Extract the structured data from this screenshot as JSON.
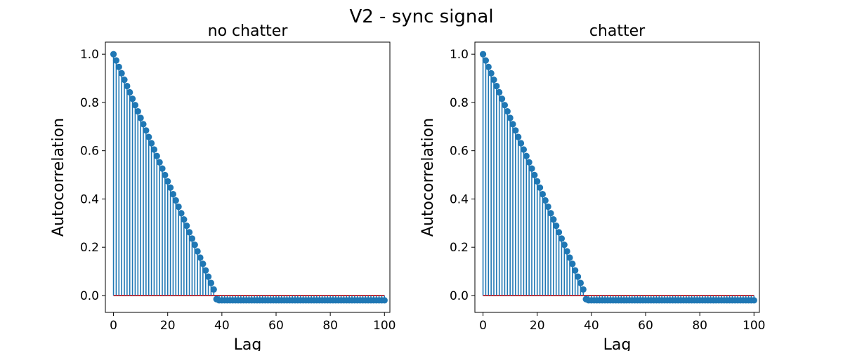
{
  "figure": {
    "title": "V2 - sync signal"
  },
  "colors": {
    "stem": "#1f77b4",
    "baseline": "#d62728",
    "axes": "#000000",
    "background": "#ffffff"
  },
  "chart_data": [
    {
      "type": "stem",
      "title": "no chatter",
      "xlabel": "Lag",
      "ylabel": "Autocorrelation",
      "xlim": [
        -3,
        102
      ],
      "ylim": [
        -0.07,
        1.05
      ],
      "xticks": [
        0,
        20,
        40,
        60,
        80,
        100
      ],
      "yticks": [
        0.0,
        0.2,
        0.4,
        0.6,
        0.8,
        1.0
      ],
      "xtick_labels": [
        "0",
        "20",
        "40",
        "60",
        "80",
        "100"
      ],
      "ytick_labels": [
        "0.0",
        "0.2",
        "0.4",
        "0.6",
        "0.8",
        "1.0"
      ],
      "baseline": 0.0,
      "grid": false,
      "x": [
        0,
        1,
        2,
        3,
        4,
        5,
        6,
        7,
        8,
        9,
        10,
        11,
        12,
        13,
        14,
        15,
        16,
        17,
        18,
        19,
        20,
        21,
        22,
        23,
        24,
        25,
        26,
        27,
        28,
        29,
        30,
        31,
        32,
        33,
        34,
        35,
        36,
        37,
        38,
        39,
        40,
        41,
        42,
        43,
        44,
        45,
        46,
        47,
        48,
        49,
        50,
        51,
        52,
        53,
        54,
        55,
        56,
        57,
        58,
        59,
        60,
        61,
        62,
        63,
        64,
        65,
        66,
        67,
        68,
        69,
        70,
        71,
        72,
        73,
        74,
        75,
        76,
        77,
        78,
        79,
        80,
        81,
        82,
        83,
        84,
        85,
        86,
        87,
        88,
        89,
        90,
        91,
        92,
        93,
        94,
        95,
        96,
        97,
        98,
        99,
        100
      ],
      "values": [
        1.0,
        0.974,
        0.947,
        0.921,
        0.894,
        0.868,
        0.842,
        0.815,
        0.789,
        0.763,
        0.736,
        0.71,
        0.684,
        0.657,
        0.631,
        0.605,
        0.578,
        0.552,
        0.526,
        0.499,
        0.473,
        0.447,
        0.42,
        0.394,
        0.368,
        0.341,
        0.315,
        0.289,
        0.262,
        0.236,
        0.21,
        0.183,
        0.157,
        0.131,
        0.104,
        0.078,
        0.052,
        0.025,
        -0.015,
        -0.02,
        -0.02,
        -0.02,
        -0.02,
        -0.02,
        -0.02,
        -0.02,
        -0.02,
        -0.02,
        -0.02,
        -0.02,
        -0.02,
        -0.02,
        -0.02,
        -0.02,
        -0.02,
        -0.02,
        -0.02,
        -0.02,
        -0.02,
        -0.02,
        -0.02,
        -0.02,
        -0.02,
        -0.02,
        -0.02,
        -0.02,
        -0.02,
        -0.02,
        -0.02,
        -0.02,
        -0.02,
        -0.02,
        -0.02,
        -0.02,
        -0.02,
        -0.02,
        -0.02,
        -0.02,
        -0.02,
        -0.02,
        -0.02,
        -0.02,
        -0.02,
        -0.02,
        -0.02,
        -0.02,
        -0.02,
        -0.02,
        -0.02,
        -0.02,
        -0.02,
        -0.02,
        -0.02,
        -0.02,
        -0.02,
        -0.02,
        -0.02,
        -0.02,
        -0.02,
        -0.02,
        -0.02
      ]
    },
    {
      "type": "stem",
      "title": "chatter",
      "xlabel": "Lag",
      "ylabel": "Autocorrelation",
      "xlim": [
        -3,
        102
      ],
      "ylim": [
        -0.07,
        1.05
      ],
      "xticks": [
        0,
        20,
        40,
        60,
        80,
        100
      ],
      "yticks": [
        0.0,
        0.2,
        0.4,
        0.6,
        0.8,
        1.0
      ],
      "xtick_labels": [
        "0",
        "20",
        "40",
        "60",
        "80",
        "100"
      ],
      "ytick_labels": [
        "0.0",
        "0.2",
        "0.4",
        "0.6",
        "0.8",
        "1.0"
      ],
      "baseline": 0.0,
      "grid": false,
      "x": [
        0,
        1,
        2,
        3,
        4,
        5,
        6,
        7,
        8,
        9,
        10,
        11,
        12,
        13,
        14,
        15,
        16,
        17,
        18,
        19,
        20,
        21,
        22,
        23,
        24,
        25,
        26,
        27,
        28,
        29,
        30,
        31,
        32,
        33,
        34,
        35,
        36,
        37,
        38,
        39,
        40,
        41,
        42,
        43,
        44,
        45,
        46,
        47,
        48,
        49,
        50,
        51,
        52,
        53,
        54,
        55,
        56,
        57,
        58,
        59,
        60,
        61,
        62,
        63,
        64,
        65,
        66,
        67,
        68,
        69,
        70,
        71,
        72,
        73,
        74,
        75,
        76,
        77,
        78,
        79,
        80,
        81,
        82,
        83,
        84,
        85,
        86,
        87,
        88,
        89,
        90,
        91,
        92,
        93,
        94,
        95,
        96,
        97,
        98,
        99,
        100
      ],
      "values": [
        1.0,
        0.974,
        0.947,
        0.921,
        0.894,
        0.868,
        0.842,
        0.815,
        0.789,
        0.763,
        0.736,
        0.71,
        0.684,
        0.657,
        0.631,
        0.605,
        0.578,
        0.552,
        0.526,
        0.499,
        0.473,
        0.447,
        0.42,
        0.394,
        0.368,
        0.341,
        0.315,
        0.289,
        0.262,
        0.236,
        0.21,
        0.183,
        0.157,
        0.131,
        0.104,
        0.078,
        0.052,
        0.025,
        -0.015,
        -0.02,
        -0.02,
        -0.02,
        -0.02,
        -0.02,
        -0.02,
        -0.02,
        -0.02,
        -0.02,
        -0.02,
        -0.02,
        -0.02,
        -0.02,
        -0.02,
        -0.02,
        -0.02,
        -0.02,
        -0.02,
        -0.02,
        -0.02,
        -0.02,
        -0.02,
        -0.02,
        -0.02,
        -0.02,
        -0.02,
        -0.02,
        -0.02,
        -0.02,
        -0.02,
        -0.02,
        -0.02,
        -0.02,
        -0.02,
        -0.02,
        -0.02,
        -0.02,
        -0.02,
        -0.02,
        -0.02,
        -0.02,
        -0.02,
        -0.02,
        -0.02,
        -0.02,
        -0.02,
        -0.02,
        -0.02,
        -0.02,
        -0.02,
        -0.02,
        -0.02,
        -0.02,
        -0.02,
        -0.02,
        -0.02,
        -0.02,
        -0.02,
        -0.02,
        -0.02,
        -0.02,
        -0.02
      ]
    }
  ]
}
